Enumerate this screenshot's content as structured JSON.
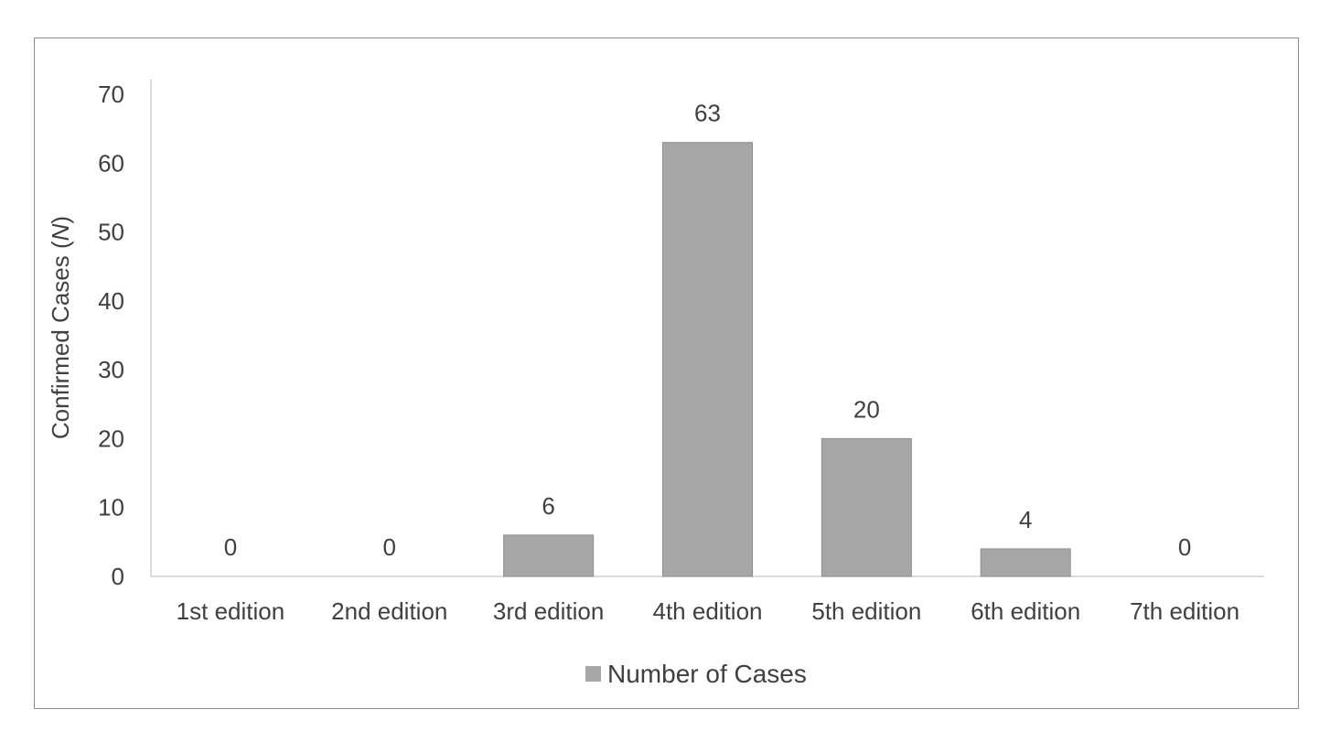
{
  "chart_data": {
    "type": "bar",
    "categories": [
      "1st edition",
      "2nd edition",
      "3rd edition",
      "4th edition",
      "5th edition",
      "6th edition",
      "7th edition"
    ],
    "series": [
      {
        "name": "Number of Cases",
        "values": [
          0,
          0,
          6,
          63,
          20,
          4,
          0
        ]
      }
    ],
    "data_labels": [
      "0",
      "0",
      "6",
      "63",
      "20",
      "4",
      "0"
    ],
    "ylabel_prefix": "Confirmed Cases (",
    "ylabel_italic": "N",
    "ylabel_suffix": ")",
    "xlabel": "",
    "ylim": [
      0,
      70
    ],
    "yticks": [
      "0",
      "10",
      "20",
      "30",
      "40",
      "50",
      "60",
      "70"
    ],
    "grid": false,
    "legend_position": "bottom",
    "colors": {
      "bar": "#a6a6a6",
      "bar_edge": "#8f8f8f",
      "axis": "#d0d0d0",
      "text": "#404040"
    }
  }
}
